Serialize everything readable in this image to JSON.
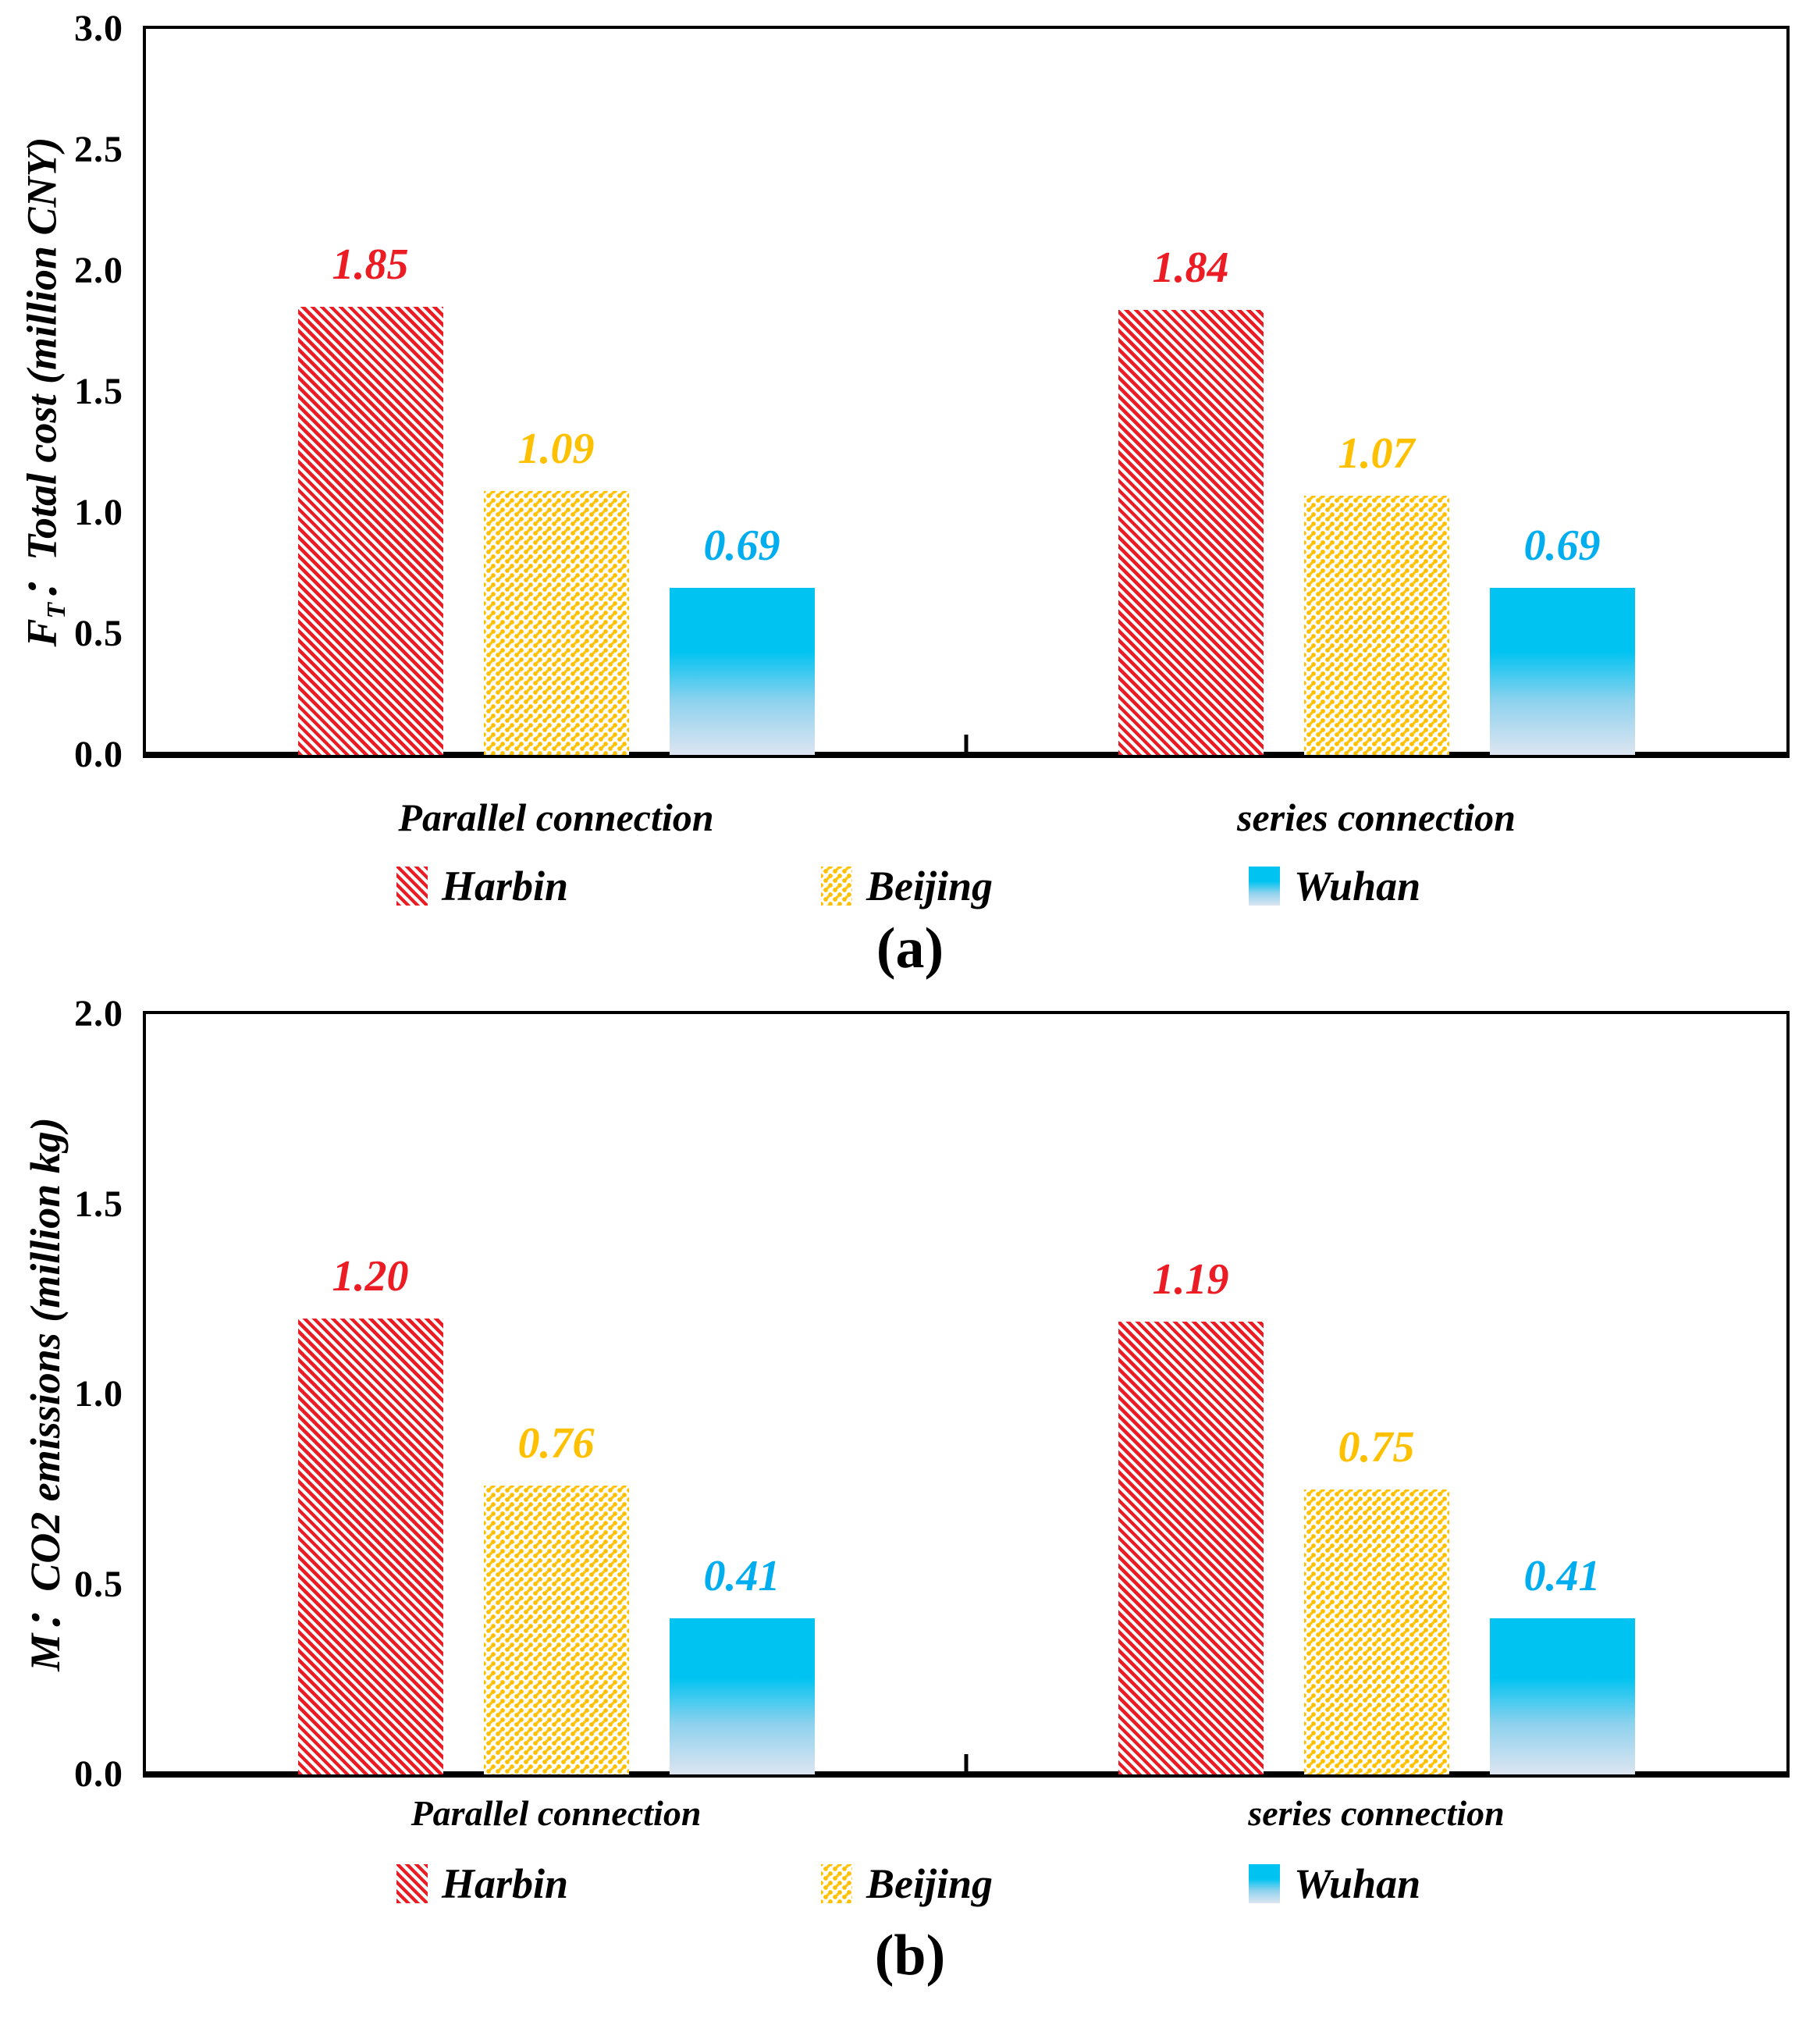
{
  "figure": {
    "caption_a": "(a)",
    "caption_b": "(b)"
  },
  "colors": {
    "harbin_red": "#EC1C24",
    "beijing_gold": "#FFC000",
    "wuhan_cyan": "#00AEEF",
    "axis_black": "#000000",
    "wuhan_bar_top": "#00C3F1",
    "wuhan_bar_bottom": "#DDE5F1"
  },
  "chart_data": [
    {
      "id": "a",
      "type": "bar",
      "title": "",
      "ylabel_plain": "FT：Total cost (million CNY)",
      "ylabel_parts": [
        {
          "text": "F",
          "sub": false
        },
        {
          "text": "T",
          "sub": true
        },
        {
          "text": "：",
          "sub": false
        },
        {
          "text": "Total cost (million CNY)",
          "sub": false
        }
      ],
      "ylim": [
        0,
        3.0
      ],
      "yticks": [
        "0.0",
        "0.5",
        "1.0",
        "1.5",
        "2.0",
        "2.5",
        "3.0"
      ],
      "grid": false,
      "legend_position": "bottom",
      "categories": [
        "Parallel connection",
        "series connection"
      ],
      "series": [
        {
          "name": "Harbin",
          "pattern": "diagonal-hatch",
          "color": "#EC1C24",
          "values": [
            1.85,
            1.84
          ],
          "labels": [
            "1.85",
            "1.84"
          ]
        },
        {
          "name": "Beijing",
          "pattern": "dotted",
          "color": "#FFC000",
          "values": [
            1.09,
            1.07
          ],
          "labels": [
            "1.09",
            "1.07"
          ]
        },
        {
          "name": "Wuhan",
          "pattern": "gradient-fade",
          "color": "#00AEEF",
          "values": [
            0.69,
            0.69
          ],
          "labels": [
            "0.69",
            "0.69"
          ]
        }
      ]
    },
    {
      "id": "b",
      "type": "bar",
      "title": "",
      "ylabel_plain": "M：CO2 emissions (million kg)",
      "ylabel_parts": [
        {
          "text": "M",
          "sub": false
        },
        {
          "text": "：",
          "sub": false
        },
        {
          "text": "CO2 emissions (million kg)",
          "sub": false
        }
      ],
      "ylim": [
        0,
        2.0
      ],
      "yticks": [
        "0.0",
        "0.5",
        "1.0",
        "1.5",
        "2.0"
      ],
      "grid": false,
      "legend_position": "bottom",
      "categories": [
        "Parallel connection",
        "series connection"
      ],
      "series": [
        {
          "name": "Harbin",
          "pattern": "diagonal-hatch",
          "color": "#EC1C24",
          "values": [
            1.2,
            1.19
          ],
          "labels": [
            "1.20",
            "1.19"
          ]
        },
        {
          "name": "Beijing",
          "pattern": "dotted",
          "color": "#FFC000",
          "values": [
            0.76,
            0.75
          ],
          "labels": [
            "0.76",
            "0.75"
          ]
        },
        {
          "name": "Wuhan",
          "pattern": "gradient-fade",
          "color": "#00AEEF",
          "values": [
            0.41,
            0.41
          ],
          "labels": [
            "0.41",
            "0.41"
          ]
        }
      ]
    }
  ]
}
